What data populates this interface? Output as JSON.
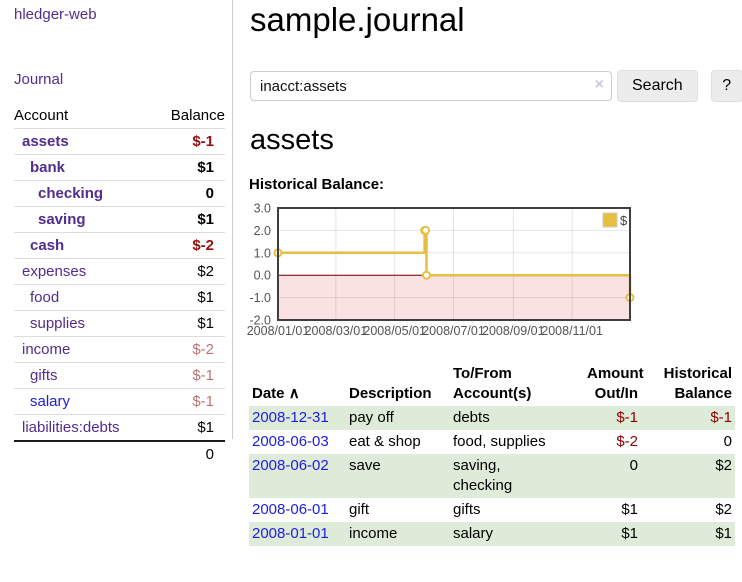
{
  "app": {
    "title": "hledger-web",
    "nav_journal": "Journal"
  },
  "sidebar": {
    "accounts_header": {
      "account": "Account",
      "balance": "Balance"
    },
    "accounts": [
      {
        "name": "assets",
        "balance": "$-1"
      },
      {
        "name": "bank",
        "balance": "$1"
      },
      {
        "name": "checking",
        "balance": "0"
      },
      {
        "name": "saving",
        "balance": "$1"
      },
      {
        "name": "cash",
        "balance": "$-2"
      },
      {
        "name": "expenses",
        "balance": "$2"
      },
      {
        "name": "food",
        "balance": "$1"
      },
      {
        "name": "supplies",
        "balance": "$1"
      },
      {
        "name": "income",
        "balance": "$-2"
      },
      {
        "name": "gifts",
        "balance": "$-1"
      },
      {
        "name": "salary",
        "balance": "$-1"
      },
      {
        "name": "liabilities:debts",
        "balance": "$1"
      }
    ],
    "total": "0"
  },
  "header": {
    "title": "sample.journal"
  },
  "search": {
    "value": "inacct:assets",
    "clear_icon": "×",
    "button_label": "Search",
    "help_label": "?"
  },
  "main": {
    "account_title": "assets",
    "chart_label": "Historical Balance:",
    "table": {
      "headers": {
        "date": "Date",
        "sort_indicator": "∧",
        "description": "Description",
        "tofrom": "To/From\nAccount(s)",
        "amount": "Amount\nOut/In",
        "balance": "Historical\nBalance"
      },
      "rows": [
        {
          "date": "2008-12-31",
          "description": "pay off",
          "accounts": "debts",
          "amount": "$-1",
          "balance": "$-1"
        },
        {
          "date": "2008-06-03",
          "description": "eat & shop",
          "accounts": "food, supplies",
          "amount": "$-2",
          "balance": "0"
        },
        {
          "date": "2008-06-02",
          "description": "save",
          "accounts": "saving,\nchecking",
          "amount": "0",
          "balance": "$2"
        },
        {
          "date": "2008-06-01",
          "description": "gift",
          "accounts": "gifts",
          "amount": "$1",
          "balance": "$2"
        },
        {
          "date": "2008-01-01",
          "description": "income",
          "accounts": "salary",
          "amount": "$1",
          "balance": "$1"
        }
      ]
    }
  },
  "colors": {
    "link_purple": "#512d8f",
    "link_blue": "#1d1de0",
    "negative_strong": "#991111",
    "negative_light": "#bd7373",
    "table_stripe_green": "#deebd8",
    "series_gold": "#e6bf42",
    "button_gray": "#ececec"
  },
  "chart_data": {
    "type": "line",
    "title": "Historical Balance:",
    "x_range": [
      "2008-01-01",
      "2008-12-31"
    ],
    "ylim": [
      -2,
      3
    ],
    "y_ticks": [
      3.0,
      2.0,
      1.0,
      0.0,
      -1.0,
      -2.0
    ],
    "x_ticks": [
      {
        "label": "2008/01/01",
        "date": "2008-01-01"
      },
      {
        "label": "2008/03/01",
        "date": "2008-03-01"
      },
      {
        "label": "2008/05/01",
        "date": "2008-05-01"
      },
      {
        "label": "2008/07/01",
        "date": "2008-07-01"
      },
      {
        "label": "2008/09/01",
        "date": "2008-09-01"
      },
      {
        "label": "2008/11/01",
        "date": "2008-11-01"
      }
    ],
    "series": [
      {
        "name": "$",
        "color": "#e6bf42",
        "steps": true,
        "points": [
          [
            "2008-01-01",
            1
          ],
          [
            "2008-06-01",
            2
          ],
          [
            "2008-06-02",
            2
          ],
          [
            "2008-06-03",
            0
          ],
          [
            "2008-12-31",
            -1
          ]
        ]
      }
    ],
    "legend_position": "top-right",
    "negative_region_color": "#fbe2e2",
    "zero_line_color": "#7a0000",
    "grid": true
  }
}
